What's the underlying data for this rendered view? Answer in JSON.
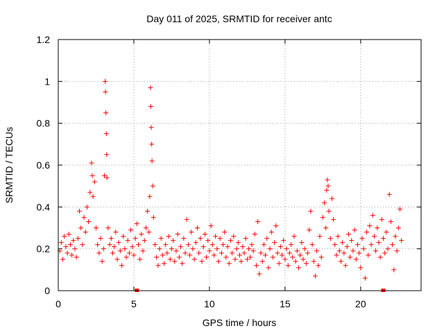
{
  "chart_data": {
    "type": "scatter",
    "title": "Day 011 of 2025, SRMTID for receiver antc",
    "xlabel": "GPS time / hours",
    "ylabel": "SRMTID / TECUs",
    "xlim": [
      0,
      24
    ],
    "ylim": [
      0,
      1.2
    ],
    "xticks": [
      0,
      5,
      10,
      15,
      20
    ],
    "xtick_labels": [
      "0",
      "5",
      "10",
      "15",
      "20"
    ],
    "yticks": [
      0,
      0.2,
      0.4,
      0.6,
      0.8,
      1,
      1.2
    ],
    "ytick_labels": [
      "0",
      "0.2",
      "0.4",
      "0.6",
      "0.8",
      "1",
      "1.2"
    ],
    "grid": true,
    "marker": "+",
    "color": "#ff0000",
    "series": [
      {
        "name": "SRMTID",
        "points": [
          [
            0.1,
            0.19
          ],
          [
            0.2,
            0.23
          ],
          [
            0.3,
            0.15
          ],
          [
            0.4,
            0.26
          ],
          [
            0.5,
            0.21
          ],
          [
            0.6,
            0.18
          ],
          [
            0.7,
            0.27
          ],
          [
            0.8,
            0.22
          ],
          [
            0.9,
            0.17
          ],
          [
            1.0,
            0.24
          ],
          [
            1.1,
            0.2
          ],
          [
            1.2,
            0.16
          ],
          [
            1.3,
            0.25
          ],
          [
            1.4,
            0.38
          ],
          [
            1.5,
            0.3
          ],
          [
            1.6,
            0.22
          ],
          [
            1.7,
            0.35
          ],
          [
            1.8,
            0.28
          ],
          [
            1.9,
            0.4
          ],
          [
            2.0,
            0.33
          ],
          [
            2.1,
            0.47
          ],
          [
            2.2,
            0.61
          ],
          [
            2.25,
            0.55
          ],
          [
            2.3,
            0.45
          ],
          [
            2.4,
            0.52
          ],
          [
            2.5,
            0.3
          ],
          [
            2.6,
            0.22
          ],
          [
            2.7,
            0.18
          ],
          [
            2.8,
            0.25
          ],
          [
            2.9,
            0.14
          ],
          [
            3.0,
            0.2
          ],
          [
            3.05,
            0.55
          ],
          [
            3.1,
            1.0
          ],
          [
            3.12,
            0.95
          ],
          [
            3.15,
            0.85
          ],
          [
            3.18,
            0.75
          ],
          [
            3.2,
            0.65
          ],
          [
            3.22,
            0.54
          ],
          [
            3.3,
            0.3
          ],
          [
            3.4,
            0.22
          ],
          [
            3.5,
            0.25
          ],
          [
            3.6,
            0.18
          ],
          [
            3.7,
            0.21
          ],
          [
            3.8,
            0.28
          ],
          [
            3.9,
            0.15
          ],
          [
            4.0,
            0.23
          ],
          [
            4.1,
            0.19
          ],
          [
            4.2,
            0.12
          ],
          [
            4.3,
            0.26
          ],
          [
            4.4,
            0.2
          ],
          [
            4.5,
            0.16
          ],
          [
            4.6,
            0.24
          ],
          [
            4.7,
            0.18
          ],
          [
            4.8,
            0.29
          ],
          [
            4.9,
            0.21
          ],
          [
            5.0,
            0.17
          ],
          [
            5.1,
            0.25
          ],
          [
            5.2,
            0.32
          ],
          [
            5.3,
            0.22
          ],
          [
            5.4,
            0.15
          ],
          [
            5.5,
            0.27
          ],
          [
            5.6,
            0.19
          ],
          [
            5.7,
            0.24
          ],
          [
            5.8,
            0.3
          ],
          [
            5.9,
            0.38
          ],
          [
            6.0,
            0.28
          ],
          [
            6.05,
            0.45
          ],
          [
            6.1,
            0.97
          ],
          [
            6.12,
            0.88
          ],
          [
            6.15,
            0.78
          ],
          [
            6.18,
            0.7
          ],
          [
            6.2,
            0.62
          ],
          [
            6.25,
            0.5
          ],
          [
            6.3,
            0.35
          ],
          [
            6.4,
            0.22
          ],
          [
            6.5,
            0.16
          ],
          [
            6.6,
            0.12
          ],
          [
            6.7,
            0.2
          ],
          [
            6.8,
            0.25
          ],
          [
            6.9,
            0.17
          ],
          [
            7.0,
            0.13
          ],
          [
            7.1,
            0.22
          ],
          [
            7.2,
            0.18
          ],
          [
            7.3,
            0.26
          ],
          [
            7.4,
            0.15
          ],
          [
            7.5,
            0.2
          ],
          [
            7.6,
            0.24
          ],
          [
            7.7,
            0.14
          ],
          [
            7.8,
            0.19
          ],
          [
            7.9,
            0.27
          ],
          [
            8.0,
            0.16
          ],
          [
            8.1,
            0.21
          ],
          [
            8.2,
            0.13
          ],
          [
            8.3,
            0.25
          ],
          [
            8.4,
            0.18
          ],
          [
            8.5,
            0.34
          ],
          [
            8.6,
            0.22
          ],
          [
            8.7,
            0.17
          ],
          [
            8.8,
            0.28
          ],
          [
            8.9,
            0.2
          ],
          [
            9.0,
            0.15
          ],
          [
            9.1,
            0.23
          ],
          [
            9.2,
            0.3
          ],
          [
            9.3,
            0.18
          ],
          [
            9.4,
            0.25
          ],
          [
            9.5,
            0.14
          ],
          [
            9.6,
            0.21
          ],
          [
            9.7,
            0.27
          ],
          [
            9.8,
            0.16
          ],
          [
            9.9,
            0.24
          ],
          [
            10.0,
            0.19
          ],
          [
            10.1,
            0.31
          ],
          [
            10.2,
            0.22
          ],
          [
            10.3,
            0.17
          ],
          [
            10.4,
            0.26
          ],
          [
            10.5,
            0.2
          ],
          [
            10.6,
            0.14
          ],
          [
            10.7,
            0.25
          ],
          [
            10.8,
            0.18
          ],
          [
            10.9,
            0.22
          ],
          [
            11.0,
            0.28
          ],
          [
            11.1,
            0.16
          ],
          [
            11.2,
            0.21
          ],
          [
            11.3,
            0.13
          ],
          [
            11.4,
            0.24
          ],
          [
            11.5,
            0.18
          ],
          [
            11.6,
            0.26
          ],
          [
            11.7,
            0.15
          ],
          [
            11.8,
            0.2
          ],
          [
            11.9,
            0.23
          ],
          [
            12.0,
            0.17
          ],
          [
            12.1,
            0.14
          ],
          [
            12.2,
            0.21
          ],
          [
            12.3,
            0.18
          ],
          [
            12.4,
            0.25
          ],
          [
            12.5,
            0.15
          ],
          [
            12.6,
            0.2
          ],
          [
            12.7,
            0.16
          ],
          [
            12.8,
            0.22
          ],
          [
            12.9,
            0.19
          ],
          [
            13.0,
            0.27
          ],
          [
            13.1,
            0.12
          ],
          [
            13.2,
            0.33
          ],
          [
            13.3,
            0.08
          ],
          [
            13.4,
            0.18
          ],
          [
            13.5,
            0.14
          ],
          [
            13.6,
            0.22
          ],
          [
            13.7,
            0.17
          ],
          [
            13.8,
            0.25
          ],
          [
            13.9,
            0.11
          ],
          [
            14.0,
            0.2
          ],
          [
            14.1,
            0.28
          ],
          [
            14.2,
            0.16
          ],
          [
            14.3,
            0.23
          ],
          [
            14.4,
            0.31
          ],
          [
            14.5,
            0.18
          ],
          [
            14.6,
            0.13
          ],
          [
            14.7,
            0.21
          ],
          [
            14.8,
            0.17
          ],
          [
            14.9,
            0.24
          ],
          [
            15.0,
            0.15
          ],
          [
            15.1,
            0.2
          ],
          [
            15.2,
            0.12
          ],
          [
            15.3,
            0.18
          ],
          [
            15.4,
            0.22
          ],
          [
            15.5,
            0.16
          ],
          [
            15.6,
            0.26
          ],
          [
            15.7,
            0.14
          ],
          [
            15.8,
            0.19
          ],
          [
            15.9,
            0.11
          ],
          [
            16.0,
            0.17
          ],
          [
            16.1,
            0.23
          ],
          [
            16.2,
            0.15
          ],
          [
            16.3,
            0.2
          ],
          [
            16.4,
            0.13
          ],
          [
            16.5,
            0.18
          ],
          [
            16.6,
            0.29
          ],
          [
            16.7,
            0.38
          ],
          [
            16.8,
            0.22
          ],
          [
            16.9,
            0.14
          ],
          [
            17.0,
            0.07
          ],
          [
            17.1,
            0.19
          ],
          [
            17.2,
            0.12
          ],
          [
            17.3,
            0.26
          ],
          [
            17.4,
            0.16
          ],
          [
            17.5,
            0.35
          ],
          [
            17.6,
            0.42
          ],
          [
            17.7,
            0.3
          ],
          [
            17.75,
            0.48
          ],
          [
            17.8,
            0.53
          ],
          [
            17.85,
            0.5
          ],
          [
            17.9,
            0.38
          ],
          [
            18.0,
            0.25
          ],
          [
            18.1,
            0.44
          ],
          [
            18.2,
            0.34
          ],
          [
            18.3,
            0.22
          ],
          [
            18.4,
            0.17
          ],
          [
            18.5,
            0.26
          ],
          [
            18.6,
            0.19
          ],
          [
            18.7,
            0.14
          ],
          [
            18.8,
            0.23
          ],
          [
            18.9,
            0.18
          ],
          [
            19.0,
            0.12
          ],
          [
            19.1,
            0.21
          ],
          [
            19.2,
            0.27
          ],
          [
            19.3,
            0.16
          ],
          [
            19.4,
            0.24
          ],
          [
            19.5,
            0.19
          ],
          [
            19.6,
            0.29
          ],
          [
            19.7,
            0.15
          ],
          [
            19.8,
            0.22
          ],
          [
            19.9,
            0.18
          ],
          [
            20.0,
            0.11
          ],
          [
            20.1,
            0.25
          ],
          [
            20.2,
            0.2
          ],
          [
            20.3,
            0.06
          ],
          [
            20.4,
            0.28
          ],
          [
            20.5,
            0.17
          ],
          [
            20.6,
            0.31
          ],
          [
            20.7,
            0.22
          ],
          [
            20.8,
            0.36
          ],
          [
            20.9,
            0.26
          ],
          [
            21.0,
            0.19
          ],
          [
            21.1,
            0.3
          ],
          [
            21.2,
            0.23
          ],
          [
            21.3,
            0.16
          ],
          [
            21.4,
            0.34
          ],
          [
            21.5,
            0.25
          ],
          [
            21.6,
            0.18
          ],
          [
            21.7,
            0.28
          ],
          [
            21.8,
            0.2
          ],
          [
            21.9,
            0.46
          ],
          [
            22.0,
            0.33
          ],
          [
            22.1,
            0.22
          ],
          [
            22.2,
            0.1
          ],
          [
            22.3,
            0.26
          ],
          [
            22.4,
            0.19
          ],
          [
            22.5,
            0.3
          ],
          [
            22.6,
            0.39
          ],
          [
            22.7,
            0.24
          ]
        ]
      }
    ],
    "gap_markers_x": [
      5.2,
      21.5
    ]
  }
}
